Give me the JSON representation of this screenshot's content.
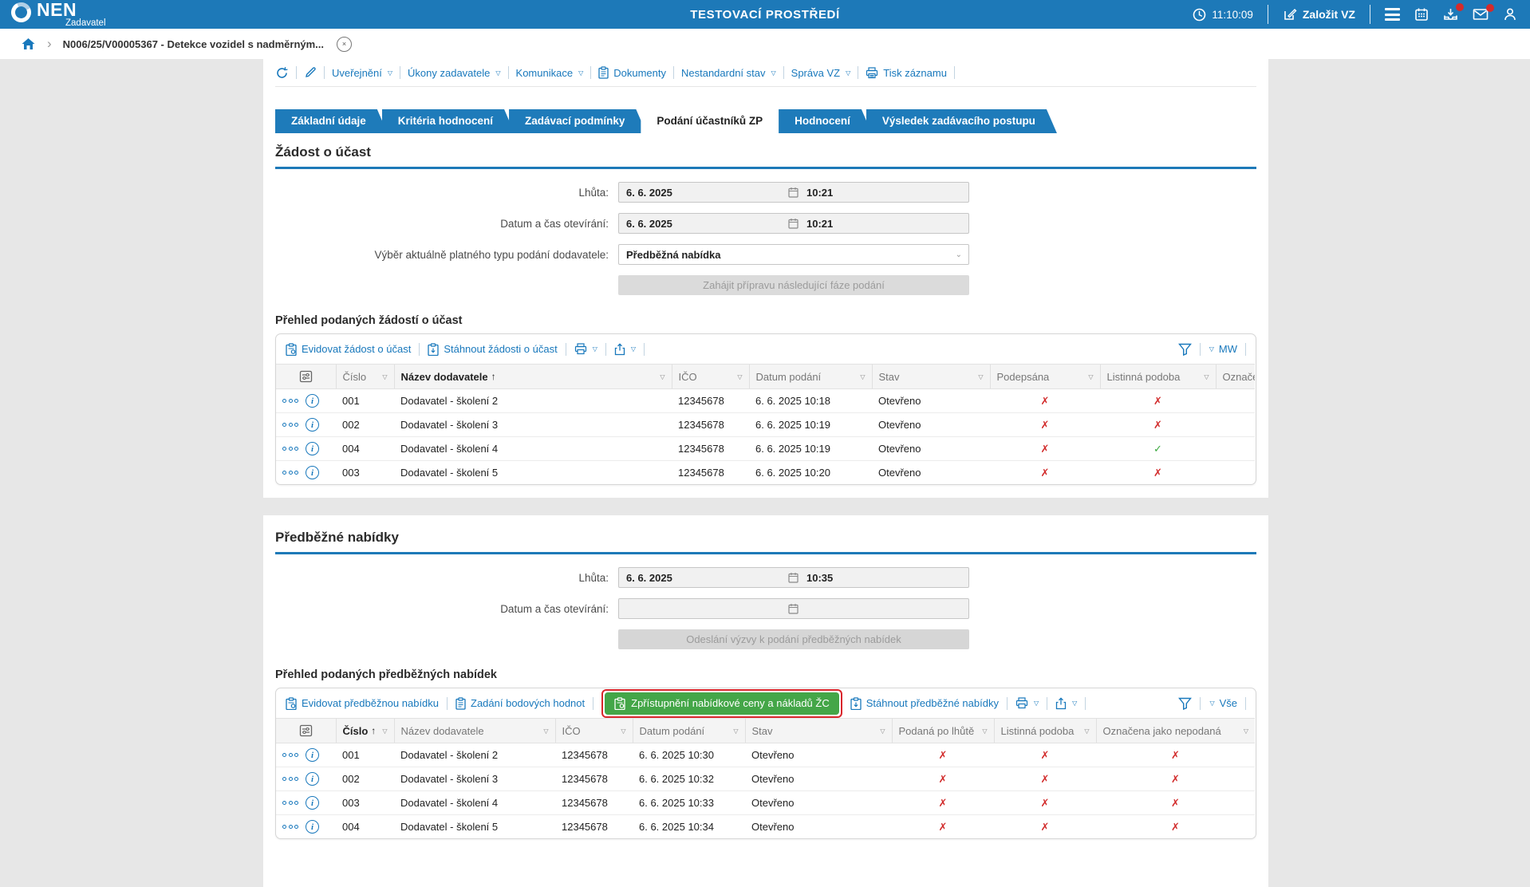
{
  "colors": {
    "accent": "#1d79b8",
    "link": "#1878bc",
    "green": "#44a648",
    "red_cross": "#d22d2d",
    "annotation_red": "#d9262c"
  },
  "header": {
    "brand": "NEN",
    "brand_sub": "Zadavatel",
    "env_title": "TESTOVACÍ PROSTŘEDÍ",
    "time": "11:10:09",
    "create_vz": "Založit VZ"
  },
  "breadcrumb": {
    "item": "N006/25/V00005367 - Detekce vozidel s nadměrným..."
  },
  "record_toolbar": {
    "items": [
      "Uveřejnění",
      "Úkony zadavatele",
      "Komunikace",
      "Dokumenty",
      "Nestandardní stav",
      "Správa VZ",
      "Tisk záznamu"
    ]
  },
  "tabs": [
    {
      "label": "Základní údaje",
      "active": false
    },
    {
      "label": "Kritéria hodnocení",
      "active": false
    },
    {
      "label": "Zadávací podmínky",
      "active": false
    },
    {
      "label": "Podání účastníků ZP",
      "active": true
    },
    {
      "label": "Hodnocení",
      "active": false
    },
    {
      "label": "Výsledek zadávacího postupu",
      "active": false
    }
  ],
  "participation": {
    "section_title": "Žádost o účast",
    "deadline_label": "Lhůta:",
    "deadline_date": "6. 6. 2025",
    "deadline_time": "10:21",
    "opening_label": "Datum a čas otevírání:",
    "opening_date": "6. 6. 2025",
    "opening_time": "10:21",
    "type_label": "Výběr aktuálně platného typu podání dodavatele:",
    "type_value": "Předběžná nabídka",
    "next_phase_button": "Zahájit přípravu následující fáze podání",
    "list_title": "Přehled podaných žádostí o účast",
    "actions": {
      "register": "Evidovat žádost o účast",
      "download": "Stáhnout žádosti o účast"
    },
    "filter_preset": "MW",
    "table": {
      "columns": [
        "Číslo",
        "Název dodavatele",
        "IČO",
        "Datum podání",
        "Stav",
        "Podepsána",
        "Listinná podoba",
        "Označe"
      ],
      "sort": {
        "column": "Název dodavatele",
        "direction": "asc"
      },
      "rows": [
        [
          "001",
          "Dodavatel - školení 2",
          "12345678",
          "6. 6. 2025 10:18",
          "Otevřeno",
          "x",
          "x",
          ""
        ],
        [
          "002",
          "Dodavatel - školení 3",
          "12345678",
          "6. 6. 2025 10:19",
          "Otevřeno",
          "x",
          "x",
          ""
        ],
        [
          "004",
          "Dodavatel - školení 4",
          "12345678",
          "6. 6. 2025 10:19",
          "Otevřeno",
          "x",
          "check",
          ""
        ],
        [
          "003",
          "Dodavatel - školení 5",
          "12345678",
          "6. 6. 2025 10:20",
          "Otevřeno",
          "x",
          "x",
          ""
        ]
      ]
    }
  },
  "preliminary": {
    "section_title": "Předběžné nabídky",
    "deadline_label": "Lhůta:",
    "deadline_date": "6. 6. 2025",
    "deadline_time": "10:35",
    "opening_label": "Datum a čas otevírání:",
    "opening_date": "",
    "opening_time": "",
    "send_call_button": "Odeslání výzvy k podání předběžných nabídek",
    "list_title": "Přehled podaných předběžných nabídek",
    "actions": {
      "register": "Evidovat předběžnou nabídku",
      "points": "Zadání bodových hodnot",
      "unlock_price": "Zpřístupnění nabídkové ceny a nákladů ŽC",
      "download": "Stáhnout předběžné nabídky"
    },
    "filter_preset": "Vše",
    "table": {
      "columns": [
        "Číslo",
        "Název dodavatele",
        "IČO",
        "Datum podání",
        "Stav",
        "Podaná po lhůtě",
        "Listinná podoba",
        "Označena jako nepodaná"
      ],
      "sort": {
        "column": "Číslo",
        "direction": "asc"
      },
      "rows": [
        [
          "001",
          "Dodavatel - školení 2",
          "12345678",
          "6. 6. 2025 10:30",
          "Otevřeno",
          "x",
          "x",
          "x"
        ],
        [
          "002",
          "Dodavatel - školení 3",
          "12345678",
          "6. 6. 2025 10:32",
          "Otevřeno",
          "x",
          "x",
          "x"
        ],
        [
          "003",
          "Dodavatel - školení 4",
          "12345678",
          "6. 6. 2025 10:33",
          "Otevřeno",
          "x",
          "x",
          "x"
        ],
        [
          "004",
          "Dodavatel - školení 5",
          "12345678",
          "6. 6. 2025 10:34",
          "Otevřeno",
          "x",
          "x",
          "x"
        ]
      ]
    }
  }
}
